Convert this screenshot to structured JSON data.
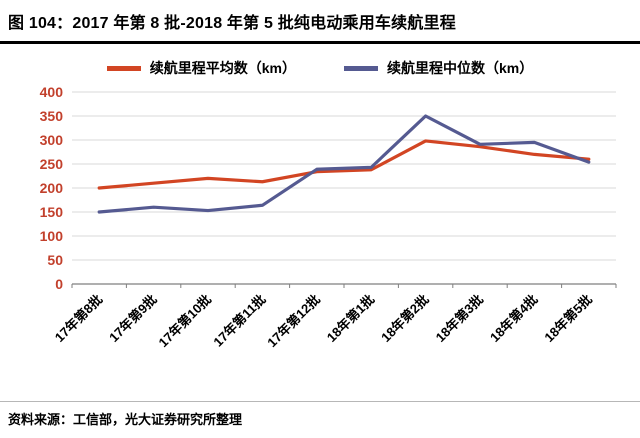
{
  "header": {
    "title": "图 104：2017 年第 8 批-2018 年第 5 批纯电动乘用车续航里程"
  },
  "footer": {
    "source": "资料来源：工信部，光大证券研究所整理"
  },
  "chart_data": {
    "type": "line",
    "title": "2017 年第 8 批-2018 年第 5 批纯电动乘用车续航里程",
    "categories": [
      "17年第8批",
      "17年第9批",
      "17年第10批",
      "17年第11批",
      "17年第12批",
      "18年第1批",
      "18年第2批",
      "18年第3批",
      "18年第4批",
      "18年第5批"
    ],
    "series": [
      {
        "name": "续航里程平均数（km）",
        "color": "#d24523",
        "values": [
          200,
          210,
          220,
          213,
          234,
          238,
          298,
          286,
          270,
          260
        ]
      },
      {
        "name": "续航里程中位数（km）",
        "color": "#555a91",
        "values": [
          150,
          160,
          153,
          164,
          239,
          243,
          350,
          291,
          295,
          254
        ]
      }
    ],
    "xlabel": "",
    "ylabel": "",
    "ylim": [
      0,
      400
    ],
    "ytick_step": 50,
    "grid": "horizontal",
    "legend_position": "top",
    "axis_label_color": "#c2402c",
    "grid_color": "#d9d9d9",
    "axis_line_color": "#7f7f7f",
    "x_label_color": "#000000"
  }
}
